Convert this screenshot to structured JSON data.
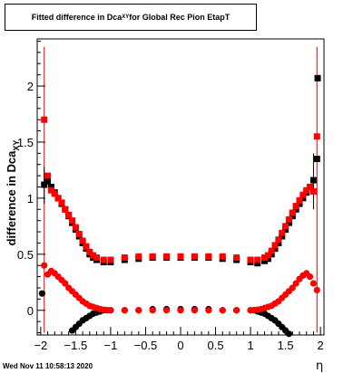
{
  "title": {
    "prefix": "Fitted difference in Dca",
    "sub": "XY",
    "suffix": " for Global Rec Pion EtapT"
  },
  "footer": {
    "timestamp": "Wed Nov 11 10:58:13 2020"
  },
  "chart_data": {
    "type": "scatter",
    "xlabel": "η",
    "ylabel": "difference in Dca",
    "ylabel_sub": "XY",
    "xlim": [
      -2.05,
      2.05
    ],
    "ylim": [
      -0.22,
      2.42
    ],
    "x_ticks": [
      -2,
      -1.5,
      -1,
      -0.5,
      0,
      0.5,
      1,
      1.5,
      2
    ],
    "x_tick_labels": [
      "−2",
      "−1.5",
      "−1",
      "−0.5",
      "0",
      "0.5",
      "1",
      "1.5",
      "2"
    ],
    "y_ticks": [
      0,
      0.5,
      1,
      1.5,
      2
    ],
    "y_tick_labels": [
      "0",
      "0.5",
      "1",
      "1.5",
      "2"
    ],
    "colors": {
      "red": "#ff0000",
      "black": "#000000"
    },
    "series": [
      {
        "color": "black",
        "marker": "square",
        "shape": "u-curve",
        "x": [
          -1.95,
          -1.9,
          -1.85,
          -1.8,
          -1.75,
          -1.7,
          -1.65,
          -1.6,
          -1.55,
          -1.5,
          -1.45,
          -1.4,
          -1.35,
          -1.3,
          -1.25,
          -1.2,
          -1.1,
          -1,
          -0.8,
          -0.6,
          -0.4,
          -0.2,
          0,
          0.2,
          0.4,
          0.6,
          0.8,
          1,
          1.1,
          1.2,
          1.25,
          1.3,
          1.35,
          1.4,
          1.45,
          1.5,
          1.55,
          1.6,
          1.65,
          1.7,
          1.75,
          1.8,
          1.85,
          1.9,
          1.95
        ],
        "y": [
          1.12,
          1.15,
          1.1,
          1.05,
          1.0,
          0.95,
          0.9,
          0.84,
          0.78,
          0.72,
          0.66,
          0.6,
          0.55,
          0.5,
          0.47,
          0.45,
          0.43,
          0.43,
          0.45,
          0.46,
          0.47,
          0.47,
          0.47,
          0.47,
          0.47,
          0.46,
          0.45,
          0.43,
          0.42,
          0.44,
          0.46,
          0.5,
          0.55,
          0.6,
          0.66,
          0.72,
          0.78,
          0.84,
          0.9,
          0.95,
          1.0,
          1.05,
          1.1,
          1.16,
          1.35
        ]
      },
      {
        "color": "red",
        "marker": "square",
        "shape": "u-curve",
        "x": [
          -1.95,
          -1.9,
          -1.85,
          -1.8,
          -1.75,
          -1.7,
          -1.65,
          -1.6,
          -1.55,
          -1.5,
          -1.45,
          -1.4,
          -1.35,
          -1.3,
          -1.25,
          -1.2,
          -1.1,
          -1,
          -0.8,
          -0.6,
          -0.4,
          -0.2,
          0,
          0.2,
          0.4,
          0.6,
          0.8,
          1,
          1.1,
          1.2,
          1.25,
          1.3,
          1.35,
          1.4,
          1.45,
          1.5,
          1.55,
          1.6,
          1.65,
          1.7,
          1.75,
          1.8,
          1.85,
          1.9,
          1.95
        ],
        "y": [
          1.7,
          1.2,
          1.07,
          1.04,
          1.0,
          0.96,
          0.9,
          0.85,
          0.8,
          0.74,
          0.68,
          0.62,
          0.57,
          0.52,
          0.49,
          0.47,
          0.45,
          0.45,
          0.47,
          0.48,
          0.48,
          0.48,
          0.48,
          0.48,
          0.48,
          0.48,
          0.47,
          0.45,
          0.45,
          0.47,
          0.49,
          0.53,
          0.58,
          0.63,
          0.69,
          0.75,
          0.81,
          0.87,
          0.93,
          0.98,
          1.03,
          1.07,
          1.1,
          1.06,
          1.55
        ]
      },
      {
        "color": "black",
        "marker": "circle",
        "shape": "dip",
        "x": [
          -1.98,
          -1.55,
          -1.5,
          -1.45,
          -1.4,
          -1.35,
          -1.3,
          -1.25,
          -1.2,
          -1.15,
          -1.1,
          -1.05,
          -1,
          -0.8,
          -0.6,
          -0.4,
          -0.2,
          0,
          0.2,
          0.4,
          0.6,
          0.8,
          1,
          1.05,
          1.1,
          1.15,
          1.2,
          1.25,
          1.3,
          1.35,
          1.4,
          1.45,
          1.5,
          1.55
        ],
        "y": [
          0.15,
          -0.18,
          -0.15,
          -0.12,
          -0.09,
          -0.07,
          -0.05,
          -0.03,
          -0.02,
          -0.01,
          0,
          0,
          0,
          0,
          0,
          0.01,
          0.01,
          0.01,
          0.01,
          0.01,
          0,
          0,
          0,
          0,
          -0.01,
          -0.02,
          -0.03,
          -0.05,
          -0.07,
          -0.09,
          -0.12,
          -0.15,
          -0.18,
          -0.21
        ]
      },
      {
        "color": "red",
        "marker": "circle",
        "shape": "hump",
        "x": [
          -1.95,
          -1.9,
          -1.85,
          -1.8,
          -1.75,
          -1.7,
          -1.65,
          -1.6,
          -1.55,
          -1.5,
          -1.45,
          -1.4,
          -1.35,
          -1.3,
          -1.25,
          -1.2,
          -1.15,
          -1.1,
          -1.05,
          -1,
          -0.8,
          -0.6,
          -0.4,
          -0.2,
          0,
          0.2,
          0.4,
          0.6,
          0.8,
          1,
          1.05,
          1.1,
          1.15,
          1.2,
          1.25,
          1.3,
          1.35,
          1.4,
          1.45,
          1.5,
          1.55,
          1.6,
          1.65,
          1.7,
          1.75,
          1.8,
          1.85,
          1.9,
          1.95
        ],
        "y": [
          0.4,
          0.32,
          0.35,
          0.33,
          0.3,
          0.27,
          0.24,
          0.2,
          0.17,
          0.14,
          0.11,
          0.08,
          0.06,
          0.04,
          0.03,
          0.02,
          0.01,
          0.005,
          0.002,
          0,
          0,
          0,
          0,
          0,
          0,
          0,
          0,
          0,
          0,
          0,
          0.002,
          0.005,
          0.01,
          0.02,
          0.03,
          0.04,
          0.06,
          0.08,
          0.11,
          0.14,
          0.17,
          0.2,
          0.24,
          0.28,
          0.31,
          0.33,
          0.3,
          0.24,
          0.18
        ]
      }
    ],
    "error_bars": [
      {
        "x": -1.95,
        "y_low": -0.2,
        "y_high": 2.35,
        "color": "red"
      },
      {
        "x": 1.95,
        "y_low": -0.2,
        "y_high": 2.35,
        "color": "red"
      },
      {
        "x": 1.9,
        "y_low": 0.9,
        "y_high": 1.4,
        "color": "black"
      },
      {
        "x": -1.95,
        "y_low": 0.95,
        "y_high": 1.28,
        "color": "black"
      }
    ],
    "extra_points": [
      {
        "x": 1.96,
        "y": 2.07,
        "color": "black",
        "marker": "square"
      }
    ]
  }
}
